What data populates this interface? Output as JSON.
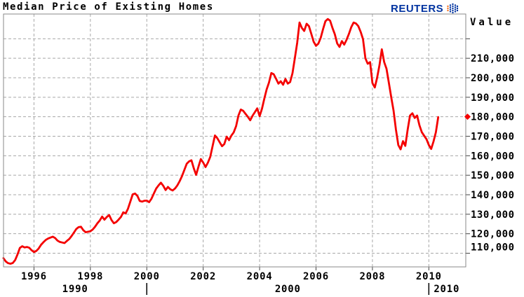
{
  "branding": {
    "wordmark": "REUTERS"
  },
  "chart_data": {
    "type": "line",
    "title": "Median Price of Existing Homes",
    "ylabel": "Value",
    "grid": "dashed",
    "legend": "none",
    "colors": {
      "line": "#F40000",
      "grid": "#A8A8A8",
      "border": "#8A8A8A",
      "text": "#000000",
      "logo_blue": "#0033A0",
      "logo_orange": "#F37021"
    },
    "xlim": [
      1994.92,
      2011.31
    ],
    "ylim": [
      103000,
      232700
    ],
    "x_ticks": [
      {
        "year": 1996,
        "label": "1996"
      },
      {
        "year": 1998,
        "label": "1998"
      },
      {
        "year": 2000,
        "label": "2000"
      },
      {
        "year": 2002,
        "label": "2002"
      },
      {
        "year": 2004,
        "label": "2004"
      },
      {
        "year": 2006,
        "label": "2006"
      },
      {
        "year": 2008,
        "label": "2008"
      },
      {
        "year": 2010,
        "label": "2010"
      }
    ],
    "decade_labels": [
      "1990",
      "2000",
      "2010"
    ],
    "decade_separator_years": [
      2000,
      2010
    ],
    "y_ticks": [
      {
        "value": 220000,
        "label": ""
      },
      {
        "value": 210000,
        "label": "210,000"
      },
      {
        "value": 200000,
        "label": "200,000"
      },
      {
        "value": 190000,
        "label": "190,000"
      },
      {
        "value": 180000,
        "label": "180,000"
      },
      {
        "value": 170000,
        "label": "170,000"
      },
      {
        "value": 160000,
        "label": "160,000"
      },
      {
        "value": 150000,
        "label": "150,000"
      },
      {
        "value": 140000,
        "label": "140,000"
      },
      {
        "value": 130000,
        "label": "130,000"
      },
      {
        "value": 120000,
        "label": "120,000"
      },
      {
        "value": 110000,
        "label": "110,000"
      }
    ],
    "last_value_marker": {
      "value": 180000,
      "shape": "diamond",
      "color": "#F40000"
    },
    "series": [
      {
        "name": "Median price of existing homes",
        "color": "#F40000",
        "x_start_year": 1994,
        "x_start_month": 12,
        "frequency": "monthly",
        "values": [
          107500,
          105800,
          104900,
          104600,
          105000,
          106500,
          109400,
          112700,
          113600,
          113000,
          113200,
          112800,
          111500,
          110600,
          111200,
          112400,
          114300,
          115600,
          116800,
          117500,
          118000,
          118500,
          117800,
          116500,
          115800,
          115500,
          115200,
          116300,
          117300,
          118800,
          120600,
          122400,
          123400,
          123600,
          121800,
          120800,
          121000,
          121300,
          122200,
          123600,
          125400,
          126800,
          128800,
          127200,
          128600,
          129600,
          127000,
          125400,
          126000,
          127200,
          128600,
          131000,
          130400,
          132800,
          136500,
          140200,
          140600,
          139400,
          136800,
          136500,
          136900,
          137000,
          136200,
          138000,
          140600,
          143200,
          144800,
          146200,
          144600,
          142400,
          144000,
          142800,
          142200,
          143200,
          144800,
          147000,
          149600,
          152800,
          155900,
          157100,
          157700,
          153500,
          150200,
          154500,
          158300,
          156500,
          154200,
          156500,
          159400,
          165000,
          170400,
          169000,
          167000,
          164900,
          166000,
          169800,
          168000,
          170400,
          172000,
          175200,
          180600,
          183700,
          183100,
          181500,
          180000,
          178200,
          180500,
          182400,
          184300,
          180300,
          184000,
          189300,
          194000,
          197600,
          202400,
          201800,
          199500,
          197000,
          198200,
          196400,
          199400,
          197000,
          197800,
          202400,
          210000,
          218000,
          228300,
          225500,
          224000,
          227700,
          226500,
          222500,
          218500,
          216400,
          217500,
          220500,
          225000,
          229000,
          230100,
          229300,
          225500,
          222300,
          217600,
          215800,
          218800,
          217000,
          219500,
          222500,
          226000,
          228300,
          227800,
          226500,
          223500,
          219800,
          210000,
          207200,
          208000,
          197300,
          195000,
          200000,
          206500,
          214600,
          208000,
          204600,
          197300,
          190100,
          183000,
          173500,
          165500,
          163300,
          167500,
          165100,
          173500,
          180600,
          181800,
          179400,
          180600,
          175700,
          172100,
          170300,
          168500,
          165500,
          163500,
          167300,
          172100,
          179800
        ]
      }
    ]
  }
}
